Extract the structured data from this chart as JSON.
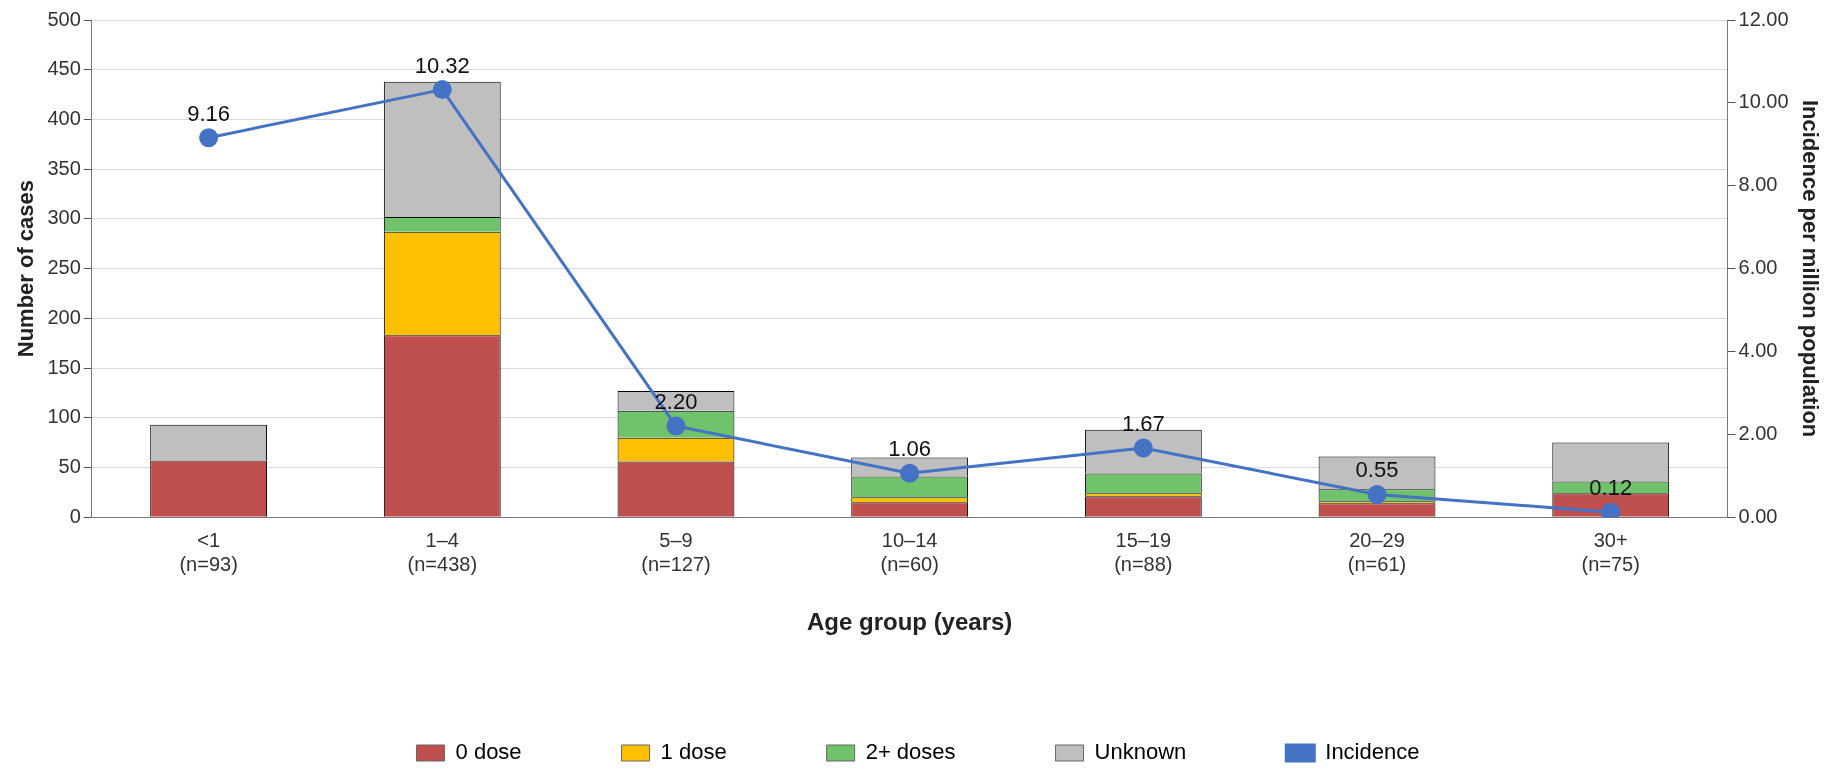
{
  "chart_data": {
    "type": "bar",
    "stacked": true,
    "xlabel": "Age group (years)",
    "ylabel": "Number of cases",
    "y2label": "Incidence per million population",
    "categories": [
      "<1\n(n=93)",
      "1–4\n(n=438)",
      "5–9\n(n=127)",
      "10–14\n(n=60)",
      "15–19\n(n=88)",
      "20–29\n(n=61)",
      "30+\n(n=75)"
    ],
    "series": [
      {
        "name": "0 dose",
        "color": "#c0504d",
        "values": [
          57,
          183,
          56,
          15,
          21,
          14,
          24
        ]
      },
      {
        "name": "1 dose",
        "color": "#ffc000",
        "values": [
          0,
          104,
          24,
          5,
          3,
          2,
          0
        ]
      },
      {
        "name": "2+ doses",
        "color": "#70c36b",
        "values": [
          0,
          15,
          27,
          21,
          20,
          12,
          12
        ]
      },
      {
        "name": "Unknown",
        "color": "#bfbfbf",
        "values": [
          36,
          136,
          20,
          19,
          44,
          33,
          39
        ]
      },
      {
        "name": "Incidence",
        "type": "line",
        "axis": "y2",
        "color": "#4472c4",
        "marker": "circle",
        "values": [
          9.16,
          10.32,
          2.2,
          1.06,
          1.67,
          0.55,
          0.12
        ],
        "value_labels": [
          "9.16",
          "10.32",
          "2.20",
          "1.06",
          "1.67",
          "0.55",
          "0.12"
        ]
      }
    ],
    "ylim": [
      0,
      500
    ],
    "yticks": [
      0,
      50,
      100,
      150,
      200,
      250,
      300,
      350,
      400,
      450,
      500
    ],
    "y2lim": [
      0,
      12
    ],
    "y2ticks": [
      {
        "value": 0,
        "label": "0.00"
      },
      {
        "value": 2,
        "label": "2.00"
      },
      {
        "value": 4,
        "label": "4.00"
      },
      {
        "value": 6,
        "label": "6.00"
      },
      {
        "value": 8,
        "label": "8.00"
      },
      {
        "value": 10,
        "label": "10.00"
      },
      {
        "value": 12,
        "label": "12.00"
      }
    ],
    "grid": "y",
    "legend": "bottom"
  }
}
